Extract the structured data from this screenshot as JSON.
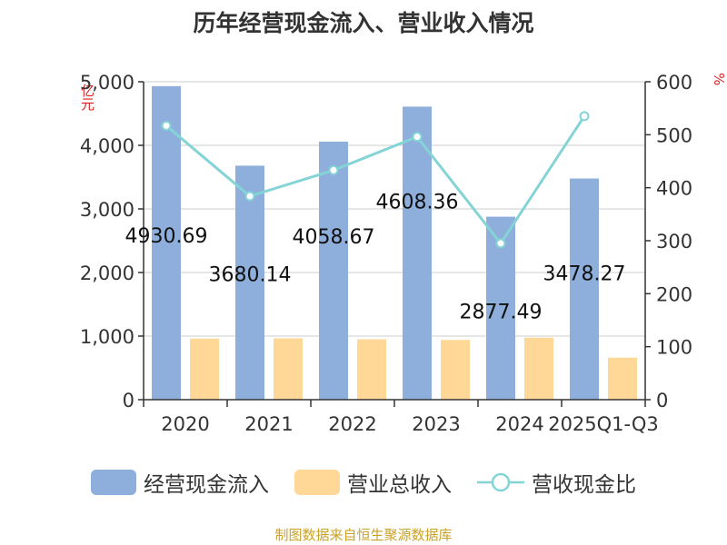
{
  "chart_data": {
    "type": "bar",
    "title": "历年经营现金流入、营业收入情况",
    "categories": [
      "2020",
      "2021",
      "2022",
      "2023",
      "2024",
      "2025Q1-Q3"
    ],
    "series": [
      {
        "name": "经营现金流入",
        "type": "bar",
        "axis": "left",
        "color": "#8eaedb",
        "values": [
          4930.69,
          3680.14,
          4058.67,
          4608.36,
          2877.49,
          3478.27
        ],
        "labels": [
          "4930.69",
          "3680.14",
          "4058.67",
          "4608.36",
          "2877.49",
          "3478.27"
        ]
      },
      {
        "name": "营业总收入",
        "type": "bar",
        "axis": "left",
        "color": "#ffd898",
        "values": [
          960,
          965,
          950,
          940,
          975,
          660
        ]
      },
      {
        "name": "营收现金比",
        "type": "line",
        "axis": "right",
        "color": "#84d4d6",
        "values": [
          517,
          384,
          433,
          496,
          295,
          535
        ]
      }
    ],
    "y_left": {
      "label": "亿元",
      "ylim": [
        0,
        5000
      ],
      "ticks": [
        "0",
        "1,000",
        "2,000",
        "3,000",
        "4,000",
        "5,000"
      ]
    },
    "y_right": {
      "label": "%",
      "ylim": [
        0,
        600
      ],
      "ticks": [
        "0",
        "100",
        "200",
        "300",
        "400",
        "500",
        "600"
      ]
    },
    "grid": true,
    "legend_position": "bottom"
  },
  "source": "制图数据来自恒生聚源数据库"
}
